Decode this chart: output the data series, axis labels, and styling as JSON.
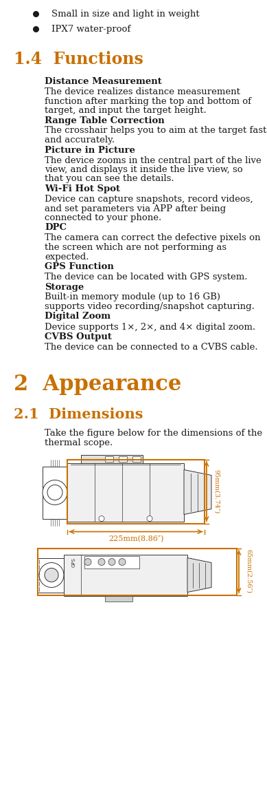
{
  "bg_color": "#ffffff",
  "orange_color": "#c87000",
  "black_color": "#1a1a1a",
  "bullet_items": [
    "Small in size and light in weight",
    "IPX7 water-proof"
  ],
  "section_14_title": "1.4  Functions",
  "functions": [
    {
      "heading": "Distance Measurement",
      "body": "The device realizes distance measurement\nfunction after marking the top and bottom of\ntarget, and input the target height."
    },
    {
      "heading": "Range Table Correction",
      "body": "The crosshair helps you to aim at the target fast\nand accurately."
    },
    {
      "heading": "Picture in Picture",
      "body": "The device zooms in the central part of the live\nview, and displays it inside the live view, so\nthat you can see the details."
    },
    {
      "heading": "Wi-Fi Hot Spot",
      "body": "Device can capture snapshots, record videos,\nand set parameters via APP after being\nconnected to your phone."
    },
    {
      "heading": "DPC",
      "body": "The camera can correct the defective pixels on\nthe screen which are not performing as\nexpected."
    },
    {
      "heading": "GPS Function",
      "body": "The device can be located with GPS system."
    },
    {
      "heading": "Storage",
      "body": "Built-in memory module (up to 16 GB)\nsupports video recording/snapshot capturing."
    },
    {
      "heading": "Digital Zoom",
      "body": "Device supports 1×, 2×, and 4× digital zoom."
    },
    {
      "heading": "CVBS Output",
      "body": "The device can be connected to a CVBS cable."
    }
  ],
  "section_2_title": "2  Appearance",
  "section_21_title": "2.1  Dimensions",
  "dimensions_intro": "Take the figure below for the dimensions of the\nthermal scope.",
  "dim_225": "225mm(8.86″)",
  "dim_95": "95mm(3.74″)",
  "dim_65": "65mm(2.56″)"
}
